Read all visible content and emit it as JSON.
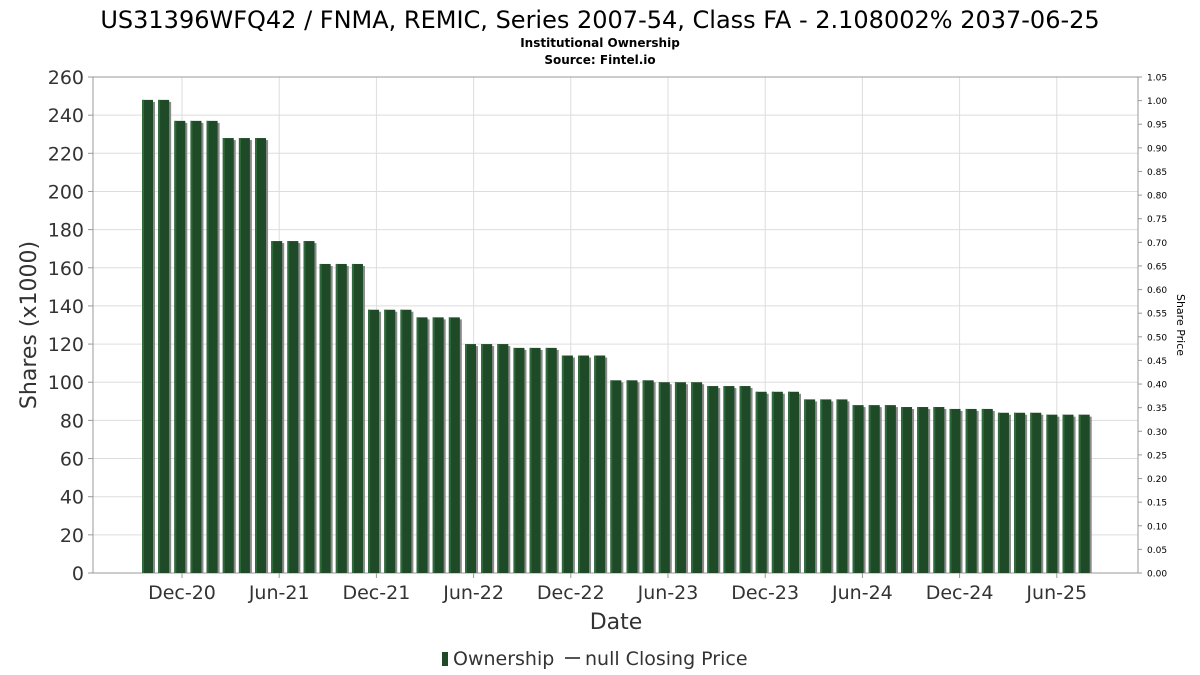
{
  "chart_data": {
    "type": "bar",
    "title": "US31396WFQ42 / FNMA, REMIC, Series 2007-54, Class FA - 2.108002% 2037-06-25",
    "subtitle": "Institutional Ownership",
    "source": "Source: Fintel.io",
    "xlabel": "Date",
    "ylabel": "Shares (x1000)",
    "y2label": "Share Price",
    "ylim": [
      0,
      260
    ],
    "y_ticks": [
      0,
      20,
      40,
      60,
      80,
      100,
      120,
      140,
      160,
      180,
      200,
      220,
      240,
      260
    ],
    "y2lim": [
      0,
      1.05
    ],
    "y2_ticks": [
      "0.00",
      "0.05",
      "0.10",
      "0.15",
      "0.20",
      "0.25",
      "0.30",
      "0.35",
      "0.40",
      "0.45",
      "0.50",
      "0.55",
      "0.60",
      "0.65",
      "0.70",
      "0.75",
      "0.80",
      "0.85",
      "0.90",
      "0.95",
      "1.00",
      "1.05"
    ],
    "x_ticks": [
      "Dec-20",
      "Jun-21",
      "Dec-21",
      "Jun-22",
      "Dec-22",
      "Jun-23",
      "Dec-23",
      "Jun-24",
      "Dec-24",
      "Jun-25"
    ],
    "grid": true,
    "legend_position": "bottom",
    "series": [
      {
        "name": "Ownership",
        "color": "#1e4a28",
        "values": [
          248,
          248,
          237,
          237,
          237,
          228,
          228,
          228,
          174,
          174,
          174,
          162,
          162,
          162,
          138,
          138,
          138,
          134,
          134,
          134,
          120,
          120,
          120,
          118,
          118,
          118,
          114,
          114,
          114,
          101,
          101,
          101,
          100,
          100,
          100,
          98,
          98,
          98,
          95,
          95,
          95,
          91,
          91,
          91,
          88,
          88,
          88,
          87,
          87,
          87,
          86,
          86,
          86,
          84,
          84,
          84,
          83,
          83,
          83
        ]
      }
    ],
    "legend": [
      {
        "label": "Ownership",
        "marker": "bar",
        "color": "#1e4a28"
      },
      {
        "label": "null Closing Price",
        "marker": "line",
        "color": "#555555"
      }
    ]
  }
}
